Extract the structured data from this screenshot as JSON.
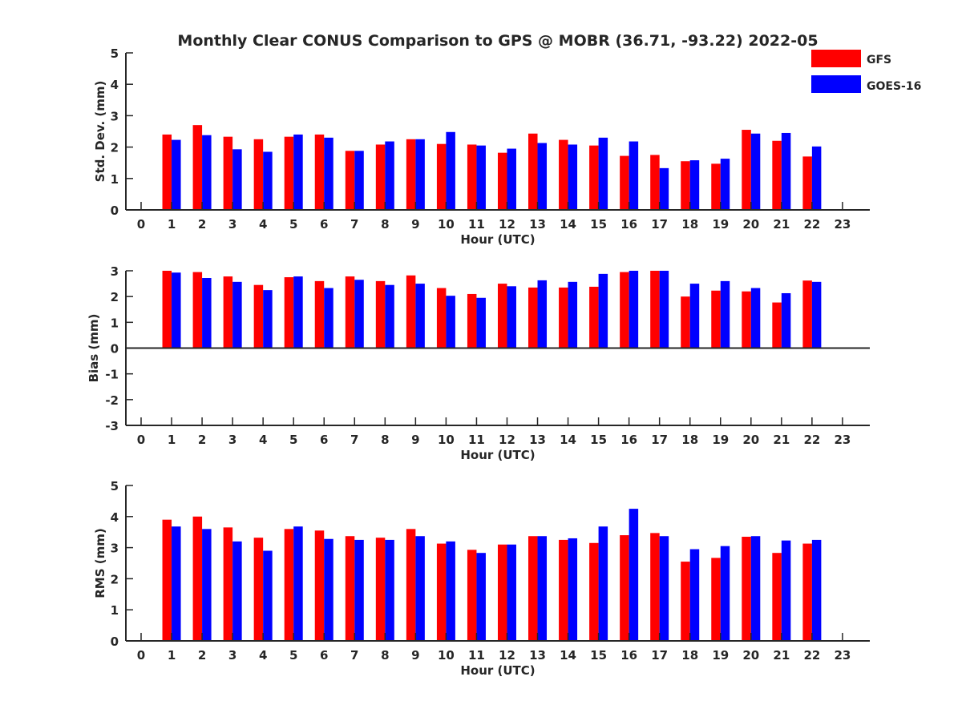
{
  "figure": {
    "title": "Monthly Clear CONUS Comparison to GPS @ MOBR (36.71, -93.22) 2022-05"
  },
  "colors": {
    "gfs": "#ff0000",
    "goes": "#0000ff",
    "axis": "#262626"
  },
  "chart_data": [
    {
      "type": "bar",
      "ylabel": "Std. Dev. (mm)",
      "xlabel": "Hour (UTC)",
      "xlim": [
        0,
        23
      ],
      "ylim": [
        0,
        5
      ],
      "yticks": [
        "0",
        "1",
        "2",
        "3",
        "4",
        "5"
      ],
      "categories": [
        "0",
        "1",
        "2",
        "3",
        "4",
        "5",
        "6",
        "7",
        "8",
        "9",
        "10",
        "11",
        "12",
        "13",
        "14",
        "15",
        "16",
        "17",
        "18",
        "19",
        "20",
        "21",
        "22",
        "23"
      ],
      "legend": "top-right",
      "grid": false,
      "series": [
        {
          "name": "GFS",
          "values": [
            null,
            2.4,
            2.7,
            2.33,
            2.25,
            2.33,
            2.4,
            1.88,
            2.08,
            2.25,
            2.1,
            2.08,
            1.82,
            2.43,
            2.23,
            2.05,
            1.72,
            1.75,
            1.55,
            1.47,
            2.55,
            2.2,
            1.7,
            null
          ]
        },
        {
          "name": "GOES-16",
          "values": [
            null,
            2.23,
            2.38,
            1.93,
            1.85,
            2.4,
            2.3,
            1.88,
            2.18,
            2.25,
            2.48,
            2.05,
            1.95,
            2.13,
            2.08,
            2.3,
            2.18,
            1.33,
            1.58,
            1.63,
            2.43,
            2.45,
            2.02,
            null
          ]
        }
      ]
    },
    {
      "type": "bar",
      "ylabel": "Bias (mm)",
      "xlabel": "Hour (UTC)",
      "xlim": [
        0,
        23
      ],
      "ylim": [
        -3,
        3
      ],
      "yticks": [
        "-3",
        "-2",
        "-1",
        "0",
        "1",
        "2",
        "3"
      ],
      "categories": [
        "0",
        "1",
        "2",
        "3",
        "4",
        "5",
        "6",
        "7",
        "8",
        "9",
        "10",
        "11",
        "12",
        "13",
        "14",
        "15",
        "16",
        "17",
        "18",
        "19",
        "20",
        "21",
        "22",
        "23"
      ],
      "grid": false,
      "series": [
        {
          "name": "GFS",
          "values": [
            null,
            3.0,
            2.95,
            2.78,
            2.45,
            2.75,
            2.6,
            2.78,
            2.6,
            2.82,
            2.33,
            2.1,
            2.5,
            2.35,
            2.35,
            2.38,
            2.95,
            3.0,
            2.0,
            2.23,
            2.2,
            1.77,
            2.62,
            null
          ]
        },
        {
          "name": "GOES-16",
          "values": [
            null,
            2.93,
            2.72,
            2.57,
            2.25,
            2.78,
            2.33,
            2.65,
            2.45,
            2.5,
            2.03,
            1.95,
            2.4,
            2.63,
            2.57,
            2.88,
            3.0,
            3.0,
            2.5,
            2.6,
            2.33,
            2.13,
            2.57,
            null
          ]
        }
      ]
    },
    {
      "type": "bar",
      "ylabel": "RMS (mm)",
      "xlabel": "Hour (UTC)",
      "xlim": [
        0,
        23
      ],
      "ylim": [
        0,
        5
      ],
      "yticks": [
        "0",
        "1",
        "2",
        "3",
        "4",
        "5"
      ],
      "categories": [
        "0",
        "1",
        "2",
        "3",
        "4",
        "5",
        "6",
        "7",
        "8",
        "9",
        "10",
        "11",
        "12",
        "13",
        "14",
        "15",
        "16",
        "17",
        "18",
        "19",
        "20",
        "21",
        "22",
        "23"
      ],
      "grid": false,
      "series": [
        {
          "name": "GFS",
          "values": [
            null,
            3.9,
            4.0,
            3.65,
            3.32,
            3.6,
            3.55,
            3.37,
            3.32,
            3.6,
            3.13,
            2.93,
            3.1,
            3.37,
            3.25,
            3.15,
            3.4,
            3.47,
            2.55,
            2.67,
            3.35,
            2.83,
            3.13,
            null
          ]
        },
        {
          "name": "GOES-16",
          "values": [
            null,
            3.68,
            3.6,
            3.2,
            2.9,
            3.68,
            3.28,
            3.25,
            3.25,
            3.37,
            3.2,
            2.83,
            3.1,
            3.37,
            3.3,
            3.68,
            4.25,
            3.37,
            2.95,
            3.05,
            3.37,
            3.23,
            3.25,
            null
          ]
        }
      ]
    }
  ]
}
